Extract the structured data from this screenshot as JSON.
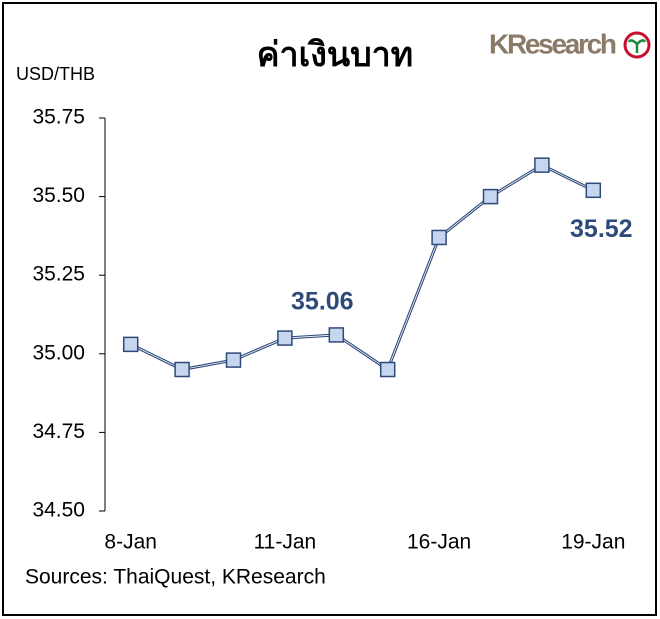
{
  "chart_data": {
    "type": "line",
    "title": "ค่าเงินบาท",
    "y_label": "USD/THB",
    "source": "Sources: ThaiQuest, KResearch",
    "logo": "KResearch",
    "categories": [
      "8-Jan",
      null,
      null,
      "11-Jan",
      null,
      null,
      "16-Jan",
      null,
      null,
      "19-Jan"
    ],
    "values": [
      35.03,
      34.95,
      34.98,
      35.05,
      35.06,
      34.95,
      35.37,
      35.5,
      35.6,
      35.52
    ],
    "value_labels": [
      null,
      null,
      null,
      null,
      "35.06",
      null,
      null,
      null,
      null,
      "35.52"
    ],
    "color": "#2e4a7a",
    "marker_color": "#c6d6ef",
    "ylim": [
      34.5,
      35.75
    ],
    "yticks": [
      {
        "value": 34.5,
        "label": "34.50"
      },
      34.75,
      {
        "value": 35,
        "label": "35.00"
      },
      35.25,
      {
        "value": 35.5,
        "label": "35.50"
      },
      35.75
    ]
  }
}
